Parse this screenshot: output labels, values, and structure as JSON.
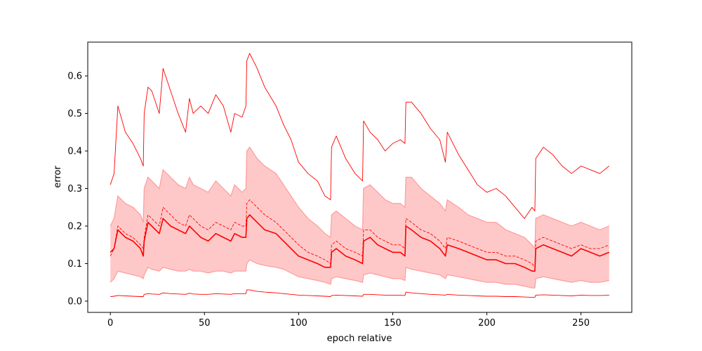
{
  "chart_data": {
    "type": "line",
    "title": "",
    "xlabel": "epoch relative",
    "ylabel": "error",
    "xlim": [
      -12,
      277
    ],
    "ylim": [
      -0.03,
      0.69
    ],
    "xticks": [
      0,
      50,
      100,
      150,
      200,
      250
    ],
    "yticks": [
      0.0,
      0.1,
      0.2,
      0.3,
      0.4,
      0.5,
      0.6
    ],
    "xtick_labels": [
      "0",
      "50",
      "100",
      "150",
      "200",
      "250"
    ],
    "ytick_labels": [
      "0.0",
      "0.1",
      "0.2",
      "0.3",
      "0.4",
      "0.5",
      "0.6"
    ],
    "grid": false,
    "legend": "none",
    "color": "#ff0000",
    "band_color": "#ffc8c8",
    "band_edge_color": "#ff9a9a",
    "x": [
      0,
      2,
      4,
      8,
      12,
      16,
      17.5,
      18,
      20,
      22,
      26,
      28,
      32,
      36,
      40,
      42,
      44,
      48,
      52,
      56,
      60,
      64,
      66,
      70,
      72,
      72.5,
      74,
      78,
      82,
      88,
      92,
      96,
      100,
      105,
      110,
      114,
      117,
      117.5,
      120,
      125,
      130,
      134,
      134.5,
      138,
      142,
      146,
      150,
      154,
      156.5,
      157,
      160,
      165,
      170,
      175,
      178,
      179,
      185,
      190,
      195,
      200,
      205,
      210,
      215,
      220,
      224,
      225.5,
      226,
      230,
      235,
      240,
      245,
      250,
      255,
      260,
      265
    ],
    "series": [
      {
        "style": "upper",
        "values": [
          0.31,
          0.34,
          0.52,
          0.45,
          0.42,
          0.38,
          0.36,
          0.5,
          0.57,
          0.56,
          0.5,
          0.62,
          0.56,
          0.5,
          0.45,
          0.54,
          0.5,
          0.52,
          0.5,
          0.55,
          0.52,
          0.45,
          0.5,
          0.49,
          0.52,
          0.64,
          0.66,
          0.62,
          0.57,
          0.52,
          0.47,
          0.43,
          0.37,
          0.34,
          0.32,
          0.28,
          0.27,
          0.41,
          0.44,
          0.38,
          0.34,
          0.32,
          0.48,
          0.45,
          0.43,
          0.4,
          0.42,
          0.43,
          0.42,
          0.53,
          0.53,
          0.5,
          0.46,
          0.43,
          0.37,
          0.45,
          0.39,
          0.35,
          0.31,
          0.29,
          0.3,
          0.28,
          0.25,
          0.22,
          0.25,
          0.24,
          0.38,
          0.41,
          0.39,
          0.36,
          0.34,
          0.36,
          0.35,
          0.34,
          0.36
        ]
      },
      {
        "style": "mean",
        "values": [
          0.13,
          0.14,
          0.19,
          0.17,
          0.16,
          0.14,
          0.12,
          0.16,
          0.21,
          0.2,
          0.18,
          0.22,
          0.2,
          0.19,
          0.18,
          0.2,
          0.19,
          0.17,
          0.16,
          0.18,
          0.17,
          0.16,
          0.18,
          0.17,
          0.17,
          0.22,
          0.23,
          0.21,
          0.19,
          0.18,
          0.16,
          0.14,
          0.12,
          0.11,
          0.1,
          0.09,
          0.09,
          0.13,
          0.14,
          0.12,
          0.11,
          0.1,
          0.16,
          0.17,
          0.15,
          0.14,
          0.13,
          0.13,
          0.12,
          0.2,
          0.19,
          0.17,
          0.16,
          0.14,
          0.12,
          0.15,
          0.14,
          0.13,
          0.12,
          0.11,
          0.11,
          0.1,
          0.1,
          0.09,
          0.08,
          0.08,
          0.14,
          0.15,
          0.14,
          0.13,
          0.12,
          0.14,
          0.13,
          0.12,
          0.13
        ]
      },
      {
        "style": "dashed",
        "values": [
          0.12,
          0.14,
          0.2,
          0.18,
          0.17,
          0.15,
          0.14,
          0.17,
          0.23,
          0.22,
          0.2,
          0.25,
          0.23,
          0.21,
          0.2,
          0.23,
          0.22,
          0.2,
          0.19,
          0.21,
          0.2,
          0.19,
          0.21,
          0.2,
          0.2,
          0.26,
          0.27,
          0.25,
          0.23,
          0.21,
          0.19,
          0.17,
          0.15,
          0.13,
          0.12,
          0.11,
          0.1,
          0.15,
          0.16,
          0.14,
          0.13,
          0.12,
          0.19,
          0.19,
          0.17,
          0.16,
          0.15,
          0.15,
          0.14,
          0.22,
          0.21,
          0.19,
          0.18,
          0.16,
          0.14,
          0.17,
          0.16,
          0.15,
          0.14,
          0.13,
          0.13,
          0.12,
          0.12,
          0.11,
          0.1,
          0.09,
          0.16,
          0.17,
          0.16,
          0.15,
          0.14,
          0.15,
          0.14,
          0.14,
          0.15
        ]
      },
      {
        "style": "lower",
        "values": [
          0.012,
          0.013,
          0.015,
          0.014,
          0.013,
          0.012,
          0.012,
          0.018,
          0.02,
          0.019,
          0.018,
          0.022,
          0.02,
          0.019,
          0.018,
          0.021,
          0.019,
          0.018,
          0.018,
          0.02,
          0.019,
          0.018,
          0.02,
          0.02,
          0.02,
          0.03,
          0.03,
          0.026,
          0.024,
          0.022,
          0.02,
          0.018,
          0.016,
          0.015,
          0.014,
          0.013,
          0.012,
          0.015,
          0.016,
          0.015,
          0.014,
          0.013,
          0.018,
          0.018,
          0.017,
          0.016,
          0.016,
          0.016,
          0.015,
          0.024,
          0.022,
          0.02,
          0.018,
          0.017,
          0.016,
          0.018,
          0.016,
          0.015,
          0.014,
          0.013,
          0.013,
          0.012,
          0.012,
          0.011,
          0.01,
          0.01,
          0.016,
          0.017,
          0.016,
          0.015,
          0.014,
          0.016,
          0.015,
          0.015,
          0.016
        ]
      }
    ],
    "band": {
      "upper": [
        0.2,
        0.22,
        0.28,
        0.26,
        0.25,
        0.23,
        0.21,
        0.3,
        0.33,
        0.32,
        0.3,
        0.35,
        0.33,
        0.31,
        0.3,
        0.33,
        0.31,
        0.3,
        0.29,
        0.32,
        0.3,
        0.28,
        0.31,
        0.29,
        0.3,
        0.4,
        0.41,
        0.38,
        0.36,
        0.34,
        0.31,
        0.28,
        0.25,
        0.22,
        0.2,
        0.18,
        0.17,
        0.23,
        0.24,
        0.22,
        0.2,
        0.19,
        0.3,
        0.31,
        0.29,
        0.27,
        0.26,
        0.26,
        0.25,
        0.33,
        0.33,
        0.3,
        0.28,
        0.26,
        0.24,
        0.27,
        0.25,
        0.23,
        0.22,
        0.21,
        0.21,
        0.19,
        0.18,
        0.17,
        0.15,
        0.14,
        0.22,
        0.23,
        0.22,
        0.21,
        0.2,
        0.21,
        0.2,
        0.19,
        0.2
      ],
      "lower": [
        0.05,
        0.06,
        0.08,
        0.075,
        0.07,
        0.065,
        0.06,
        0.07,
        0.09,
        0.085,
        0.08,
        0.09,
        0.085,
        0.08,
        0.08,
        0.085,
        0.08,
        0.08,
        0.075,
        0.08,
        0.08,
        0.075,
        0.08,
        0.08,
        0.08,
        0.1,
        0.11,
        0.1,
        0.095,
        0.09,
        0.085,
        0.075,
        0.065,
        0.06,
        0.055,
        0.05,
        0.045,
        0.06,
        0.065,
        0.06,
        0.055,
        0.05,
        0.07,
        0.075,
        0.07,
        0.065,
        0.06,
        0.06,
        0.055,
        0.09,
        0.085,
        0.08,
        0.075,
        0.07,
        0.06,
        0.07,
        0.065,
        0.06,
        0.055,
        0.05,
        0.05,
        0.045,
        0.045,
        0.04,
        0.035,
        0.035,
        0.06,
        0.065,
        0.06,
        0.055,
        0.05,
        0.055,
        0.05,
        0.05,
        0.055
      ]
    }
  }
}
